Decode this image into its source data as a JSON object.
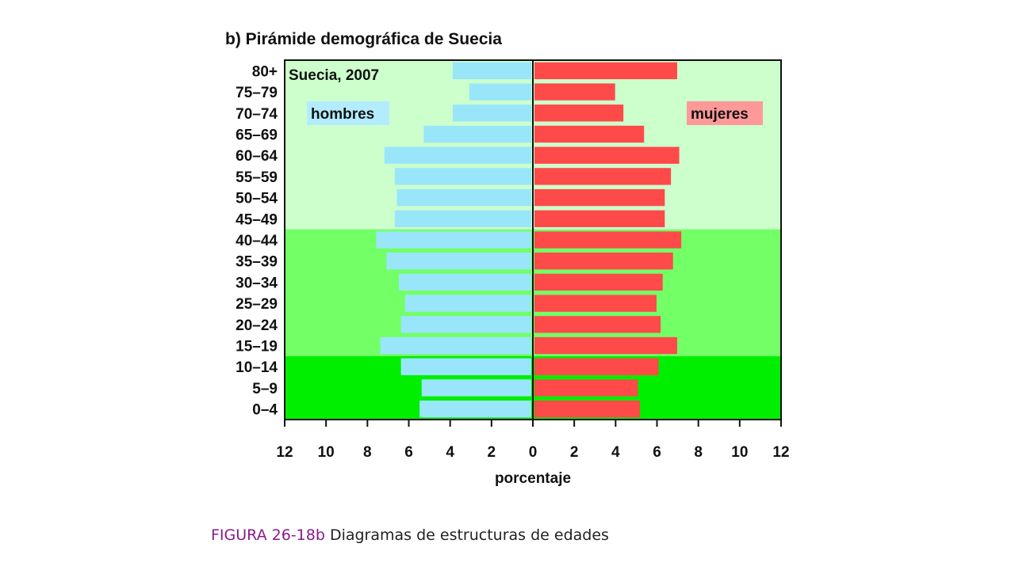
{
  "chart_data": {
    "type": "bar",
    "title": "b) Pirámide demográfica de Suecia",
    "subtitle": "Suecia, 2007",
    "xlabel": "porcentaje",
    "ylabel": "",
    "categories": [
      "80+",
      "75–79",
      "70–74",
      "65–69",
      "60–64",
      "55–59",
      "50–54",
      "45–49",
      "40–44",
      "35–39",
      "30–34",
      "25–29",
      "20–24",
      "15–19",
      "10–14",
      "5–9",
      "0–4"
    ],
    "series": [
      {
        "name": "hombres",
        "color": "#99e6fa",
        "values": [
          3.8,
          3.0,
          3.8,
          5.2,
          7.1,
          6.6,
          6.5,
          6.6,
          7.5,
          7.0,
          6.4,
          6.1,
          6.3,
          7.3,
          6.3,
          5.3,
          5.4
        ]
      },
      {
        "name": "mujeres",
        "color": "#ff4a4a",
        "values": [
          6.9,
          3.9,
          4.3,
          5.3,
          7.0,
          6.6,
          6.3,
          6.3,
          7.1,
          6.7,
          6.2,
          5.9,
          6.1,
          6.9,
          6.0,
          5.0,
          5.1
        ]
      }
    ],
    "xlim": [
      -12,
      12
    ],
    "xticks": [
      "12",
      "10",
      "8",
      "6",
      "4",
      "2",
      "0",
      "2",
      "4",
      "6",
      "8",
      "10",
      "12"
    ],
    "bands": [
      {
        "from": "45–49",
        "to": "80+",
        "color": "#ccffcc"
      },
      {
        "from": "15–19",
        "to": "40–44",
        "color": "#73ff66"
      },
      {
        "from": "0–4",
        "to": "10–14",
        "color": "#00ee00"
      }
    ],
    "legend_placement": "inside-top",
    "legend_colors": {
      "hombres": "#b3ecff",
      "mujeres": "#ff9999"
    },
    "grid": false
  },
  "caption": {
    "figure_label": "FIGURA 26-18b",
    "text": " Diagramas de estructuras de edades"
  }
}
